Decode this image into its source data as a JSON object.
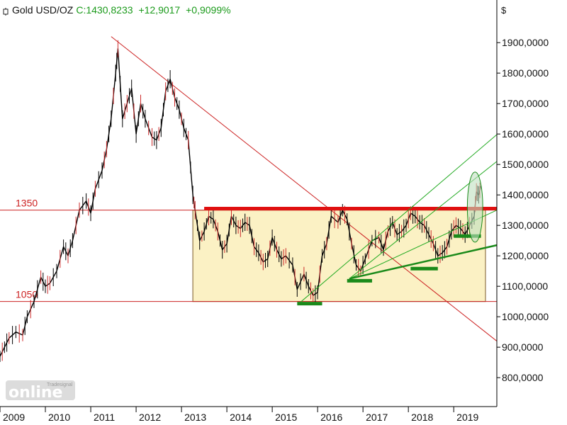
{
  "header": {
    "title": "Gold USD/OZ",
    "close": "C:1430,8233",
    "change": "+12,9017",
    "change_pct": "+0,9099%"
  },
  "watermark": {
    "brand": "Tradesignal",
    "text": "online"
  },
  "colors": {
    "price": "#000000",
    "down_candle": "#cc2a2a",
    "resistance": "#e01010",
    "level_lines": "#cc2222",
    "range_fill": "#fbf1c4",
    "support_green": "#1a8a1a",
    "fan_lines": "#22aa22",
    "ellipse_fill": "#bfe0bf",
    "grid": "#000000"
  },
  "chart_data": {
    "type": "line",
    "title": "Gold USD/OZ",
    "y_unit": "$",
    "y_scale": "linear",
    "xlim": [
      2009.0,
      2019.95
    ],
    "ylim": [
      705,
      2040
    ],
    "x_ticks": [
      2009,
      2010,
      2011,
      2012,
      2013,
      2014,
      2015,
      2016,
      2017,
      2018,
      2019
    ],
    "x_tick_labels": [
      "2009",
      "2010",
      "2011",
      "2012",
      "2013",
      "2014",
      "2015",
      "2016",
      "2017",
      "2018",
      "2019"
    ],
    "y_ticks": [
      800,
      900,
      1000,
      1100,
      1200,
      1300,
      1400,
      1500,
      1600,
      1700,
      1800,
      1900
    ],
    "y_tick_labels": [
      "800,0000",
      "900,0000",
      "1000,0000",
      "1100,0000",
      "1200,0000",
      "1300,0000",
      "1400,0000",
      "1500,0000",
      "1600,0000",
      "1700,0000",
      "1800,0000",
      "1900,0000"
    ],
    "series": [
      {
        "name": "Gold USD/OZ",
        "x": [
          2009.0,
          2009.1,
          2009.2,
          2009.35,
          2009.5,
          2009.6,
          2009.75,
          2009.9,
          2010.0,
          2010.1,
          2010.25,
          2010.4,
          2010.5,
          2010.6,
          2010.75,
          2010.9,
          2011.0,
          2011.1,
          2011.25,
          2011.35,
          2011.45,
          2011.55,
          2011.6,
          2011.7,
          2011.8,
          2011.9,
          2012.0,
          2012.1,
          2012.2,
          2012.35,
          2012.45,
          2012.55,
          2012.65,
          2012.75,
          2012.85,
          2012.95,
          2013.05,
          2013.15,
          2013.25,
          2013.3,
          2013.4,
          2013.5,
          2013.6,
          2013.7,
          2013.8,
          2013.9,
          2014.0,
          2014.1,
          2014.2,
          2014.3,
          2014.4,
          2014.5,
          2014.6,
          2014.7,
          2014.8,
          2014.9,
          2015.0,
          2015.1,
          2015.2,
          2015.3,
          2015.45,
          2015.55,
          2015.7,
          2015.8,
          2015.9,
          2016.0,
          2016.1,
          2016.2,
          2016.3,
          2016.45,
          2016.55,
          2016.65,
          2016.75,
          2016.85,
          2016.95,
          2017.05,
          2017.2,
          2017.35,
          2017.45,
          2017.55,
          2017.65,
          2017.75,
          2017.85,
          2017.95,
          2018.05,
          2018.15,
          2018.25,
          2018.35,
          2018.45,
          2018.55,
          2018.65,
          2018.75,
          2018.85,
          2018.95,
          2019.05,
          2019.15,
          2019.25,
          2019.35,
          2019.45,
          2019.5,
          2019.55,
          2019.6
        ],
        "y": [
          870,
          900,
          930,
          950,
          940,
          1000,
          1050,
          1130,
          1100,
          1110,
          1150,
          1230,
          1200,
          1250,
          1350,
          1380,
          1340,
          1420,
          1480,
          1550,
          1650,
          1800,
          1880,
          1650,
          1700,
          1750,
          1600,
          1700,
          1650,
          1590,
          1580,
          1620,
          1740,
          1780,
          1720,
          1680,
          1620,
          1580,
          1400,
          1350,
          1250,
          1280,
          1330,
          1320,
          1280,
          1220,
          1240,
          1330,
          1300,
          1290,
          1310,
          1300,
          1230,
          1210,
          1180,
          1190,
          1260,
          1220,
          1190,
          1200,
          1170,
          1090,
          1140,
          1100,
          1070,
          1080,
          1200,
          1240,
          1330,
          1310,
          1350,
          1320,
          1240,
          1170,
          1150,
          1190,
          1250,
          1260,
          1220,
          1280,
          1310,
          1270,
          1280,
          1300,
          1340,
          1330,
          1310,
          1300,
          1270,
          1240,
          1200,
          1210,
          1230,
          1280,
          1300,
          1290,
          1270,
          1300,
          1330,
          1410,
          1400,
          1430
        ]
      }
    ],
    "annotations": [
      {
        "label": "1350",
        "y": 1350
      },
      {
        "label": "1050",
        "y": 1050
      }
    ],
    "range_box": {
      "x": [
        2013.25,
        2019.7
      ],
      "y": [
        1050,
        1350
      ]
    },
    "resistance_line": {
      "x": [
        2013.5,
        2019.95
      ],
      "y": 1355
    },
    "downtrend_line": {
      "x": [
        2011.45,
        2019.95
      ],
      "y": [
        1920,
        920
      ]
    },
    "support_markers": [
      {
        "x": [
          2015.55,
          2016.1
        ],
        "y": 1043
      },
      {
        "x": [
          2016.65,
          2017.2
        ],
        "y": 1118
      },
      {
        "x": [
          2018.05,
          2018.65
        ],
        "y": 1158
      },
      {
        "x": [
          2019.0,
          2019.6
        ],
        "y": 1265
      }
    ],
    "support_trendline": {
      "x": [
        2016.7,
        2019.95
      ],
      "y": [
        1125,
        1235
      ]
    },
    "fan_lines": [
      {
        "x": [
          2015.6,
          2019.95
        ],
        "y": [
          1045,
          1598
        ]
      },
      {
        "x": [
          2016.7,
          2019.95
        ],
        "y": [
          1125,
          1510
        ]
      },
      {
        "x": [
          2016.7,
          2019.95
        ],
        "y": [
          1125,
          1350
        ]
      }
    ],
    "highlight_ellipse": {
      "cx": 2019.47,
      "cy": 1360,
      "rx": 0.17,
      "ry": 115
    },
    "grid": false,
    "legend": "none"
  }
}
